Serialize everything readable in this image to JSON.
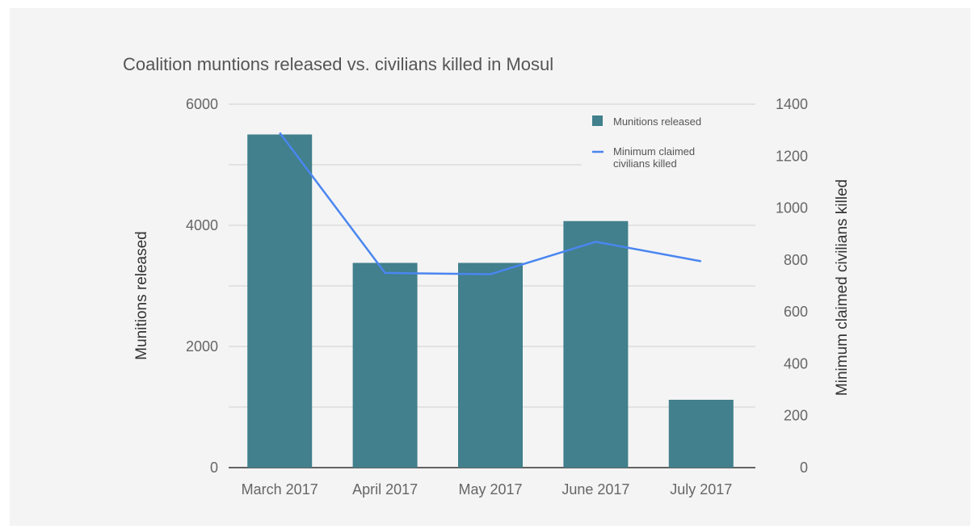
{
  "chart_data": {
    "type": "bar",
    "title": "Coalition muntions released vs. civilians killed in Mosul",
    "categories": [
      "March 2017",
      "April 2017",
      "May 2017",
      "June 2017",
      "July 2017"
    ],
    "series": [
      {
        "name": "Munitions released",
        "type": "bar",
        "axis": "left",
        "color": "#41808c",
        "values": [
          5500,
          3380,
          3380,
          4070,
          1120
        ]
      },
      {
        "name": "Minimum claimed civilians killed",
        "type": "line",
        "axis": "right",
        "color": "#4a86f0",
        "values": [
          1290,
          750,
          745,
          870,
          795
        ]
      }
    ],
    "ylabel": "Munitions released",
    "y2label": "Minimum claimed civilians killed",
    "ylim": [
      0,
      6000
    ],
    "y2lim": [
      0,
      1400
    ],
    "yticks": [
      "0",
      "2000",
      "4000",
      "6000"
    ],
    "y2ticks": [
      "0",
      "200",
      "400",
      "600",
      "800",
      "1000",
      "1200",
      "1400"
    ],
    "grid": true,
    "legend_position": "top-right",
    "legend": [
      "Munitions released",
      "Minimum claimed civilians killed"
    ],
    "legend_lines": [
      [
        "Munitions released"
      ],
      [
        "Minimum claimed",
        "civilians killed"
      ]
    ]
  }
}
